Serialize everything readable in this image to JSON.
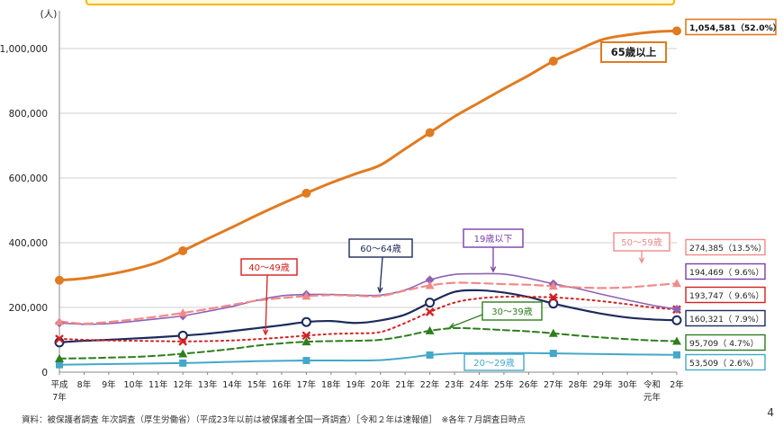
{
  "chart_data": {
    "type": "line",
    "ylabel": "(人)",
    "ylim": [
      0,
      1100000
    ],
    "yticks": [
      0,
      200000,
      400000,
      600000,
      800000,
      1000000
    ],
    "ytick_labels": [
      "0",
      "200,000",
      "400,000",
      "600,000",
      "800,000",
      "1,000,000"
    ],
    "categories": [
      "平成7年",
      "8年",
      "9年",
      "10年",
      "11年",
      "12年",
      "13年",
      "14年",
      "15年",
      "16年",
      "17年",
      "18年",
      "19年",
      "20年",
      "21年",
      "22年",
      "23年",
      "24年",
      "25年",
      "26年",
      "27年",
      "28年",
      "29年",
      "30年",
      "令和元年",
      "2年"
    ],
    "xtick_labels": [
      {
        "line1": "平成",
        "line2": "7年"
      },
      {
        "line1": "8年",
        "line2": ""
      },
      {
        "line1": "9年",
        "line2": ""
      },
      {
        "line1": "10年",
        "line2": ""
      },
      {
        "line1": "11年",
        "line2": ""
      },
      {
        "line1": "12年",
        "line2": ""
      },
      {
        "line1": "13年",
        "line2": ""
      },
      {
        "line1": "14年",
        "line2": ""
      },
      {
        "line1": "15年",
        "line2": ""
      },
      {
        "line1": "16年",
        "line2": ""
      },
      {
        "line1": "17年",
        "line2": ""
      },
      {
        "line1": "18年",
        "line2": ""
      },
      {
        "line1": "19年",
        "line2": ""
      },
      {
        "line1": "20年",
        "line2": ""
      },
      {
        "line1": "21年",
        "line2": ""
      },
      {
        "line1": "22年",
        "line2": ""
      },
      {
        "line1": "23年",
        "line2": ""
      },
      {
        "line1": "24年",
        "line2": ""
      },
      {
        "line1": "25年",
        "line2": ""
      },
      {
        "line1": "26年",
        "line2": ""
      },
      {
        "line1": "27年",
        "line2": ""
      },
      {
        "line1": "28年",
        "line2": ""
      },
      {
        "line1": "29年",
        "line2": ""
      },
      {
        "line1": "30年",
        "line2": ""
      },
      {
        "line1": "令和",
        "line2": "元年"
      },
      {
        "line1": "2年",
        "line2": ""
      }
    ],
    "series": [
      {
        "key": "s65",
        "name": "65歳以上",
        "color": "#e07b21",
        "width": 3,
        "dash": "",
        "marker": "dot",
        "values": [
          284000,
          290000,
          302000,
          318000,
          340000,
          375000,
          412000,
          448000,
          485000,
          520000,
          553000,
          585000,
          613000,
          640000,
          690000,
          740000,
          790000,
          833000,
          876000,
          917000,
          961000,
          996000,
          1028000,
          1042000,
          1051000,
          1054581
        ],
        "markers": [
          0,
          5,
          10,
          15,
          20,
          25
        ],
        "end_label": "1,054,581（52.0%）",
        "label_color": "#e07b21"
      },
      {
        "key": "s50",
        "name": "50〜59歳",
        "color": "#f08a8a",
        "width": 2.2,
        "dash": "9,5",
        "marker": "triangle",
        "values": [
          157000,
          150000,
          155000,
          163000,
          172000,
          183000,
          195000,
          208000,
          221000,
          229000,
          235000,
          238000,
          236000,
          235000,
          252000,
          268000,
          276000,
          275000,
          272000,
          270000,
          266000,
          262000,
          260000,
          262000,
          268000,
          274385
        ],
        "markers": [
          0,
          5,
          10,
          15,
          20,
          25
        ],
        "end_label": "274,385（13.5%）",
        "label_color": "#f08a8a"
      },
      {
        "key": "s19",
        "name": "19歳以下",
        "color": "#8e62b5",
        "width": 1.6,
        "dash": "",
        "marker": "diamond",
        "values": [
          152000,
          148000,
          150000,
          157000,
          165000,
          174000,
          188000,
          203000,
          222000,
          236000,
          240000,
          240000,
          238000,
          238000,
          254000,
          285000,
          302000,
          304000,
          303000,
          290000,
          273000,
          258000,
          240000,
          223000,
          207000,
          194469
        ],
        "markers": [
          0,
          5,
          10,
          15,
          20,
          25
        ],
        "end_label": "194,469（ 9.6%）",
        "label_color": "#7a3fa8"
      },
      {
        "key": "s40",
        "name": "40〜49歳",
        "color": "#d42020",
        "width": 2,
        "dash": "2,4",
        "marker": "x",
        "values": [
          103000,
          100000,
          98000,
          97000,
          96000,
          95000,
          96000,
          98000,
          102000,
          107000,
          113000,
          118000,
          120000,
          124000,
          152000,
          186000,
          215000,
          228000,
          233000,
          233000,
          231000,
          226000,
          219000,
          210000,
          200000,
          193747
        ],
        "markers": [
          0,
          5,
          10,
          15,
          20,
          25
        ],
        "end_label": "193,747（ 9.6%）",
        "label_color": "#d42020"
      },
      {
        "key": "s60",
        "name": "60〜64歳",
        "color": "#1d2b5c",
        "width": 2.2,
        "dash": "",
        "marker": "circle",
        "values": [
          92000,
          97000,
          100000,
          104000,
          108000,
          113000,
          119000,
          127000,
          136000,
          145000,
          155000,
          158000,
          152000,
          160000,
          178000,
          215000,
          248000,
          253000,
          246000,
          232000,
          212000,
          195000,
          180000,
          169000,
          163000,
          160321
        ],
        "markers": [
          0,
          5,
          10,
          15,
          20,
          25
        ],
        "end_label": "160,321（ 7.9%）",
        "label_color": "#1d2b5c"
      },
      {
        "key": "s30",
        "name": "30〜39歳",
        "color": "#2e7d1e",
        "width": 2,
        "dash": "7,4",
        "marker": "triangle",
        "values": [
          42000,
          43000,
          45000,
          47000,
          51000,
          57000,
          64000,
          72000,
          82000,
          89000,
          94000,
          96000,
          97000,
          100000,
          112000,
          128000,
          136000,
          134000,
          130000,
          126000,
          120000,
          113000,
          107000,
          102000,
          98000,
          95709
        ],
        "markers": [
          0,
          5,
          10,
          15,
          20,
          25
        ],
        "end_label": "95,709（ 4.7%）",
        "label_color": "#2e7d1e"
      },
      {
        "key": "s20",
        "name": "20〜29歳",
        "color": "#44a8c9",
        "width": 2,
        "dash": "",
        "marker": "square",
        "values": [
          23000,
          24000,
          25000,
          26000,
          27000,
          28000,
          30000,
          32000,
          34000,
          35000,
          36000,
          36000,
          36000,
          37000,
          44000,
          53000,
          58000,
          59000,
          59000,
          59000,
          58000,
          57000,
          56000,
          55000,
          54000,
          53509
        ],
        "markers": [
          0,
          5,
          10,
          15,
          20,
          25
        ],
        "end_label": "53,509（ 2.6%）",
        "label_color": "#44a8c9"
      }
    ],
    "annotations": [
      {
        "key": "a65",
        "series": "s65",
        "text": "65歳以上",
        "color": "#1a1a1a",
        "border": "#e07b21",
        "bold": true
      },
      {
        "key": "a60",
        "series": "s60",
        "text": "60〜64歳",
        "color": "#1d2b5c",
        "border": "#1d2b5c",
        "bold": false
      },
      {
        "key": "a40",
        "series": "s40",
        "text": "40〜49歳",
        "color": "#d42020",
        "border": "#d42020",
        "bold": false
      },
      {
        "key": "a19",
        "series": "s19",
        "text": "19歳以下",
        "color": "#7a3fa8",
        "border": "#7a3fa8",
        "bold": false
      },
      {
        "key": "a50",
        "series": "s50",
        "text": "50〜59歳",
        "color": "#f08a8a",
        "border": "#f08a8a",
        "bold": false
      },
      {
        "key": "a30",
        "series": "s30",
        "text": "30〜39歳",
        "color": "#2e7d1e",
        "border": "#2e7d1e",
        "bold": false
      },
      {
        "key": "a20",
        "series": "s20",
        "text": "20〜29歳",
        "color": "#44a8c9",
        "border": "#44a8c9",
        "bold": false
      }
    ]
  },
  "footnote": "資料：被保護者調査 年次調査（厚生労働省）（平成23年以前は被保護者全国一斉調査）［令和２年は速報値］　※各年７月調査日時点",
  "page_number": "4"
}
